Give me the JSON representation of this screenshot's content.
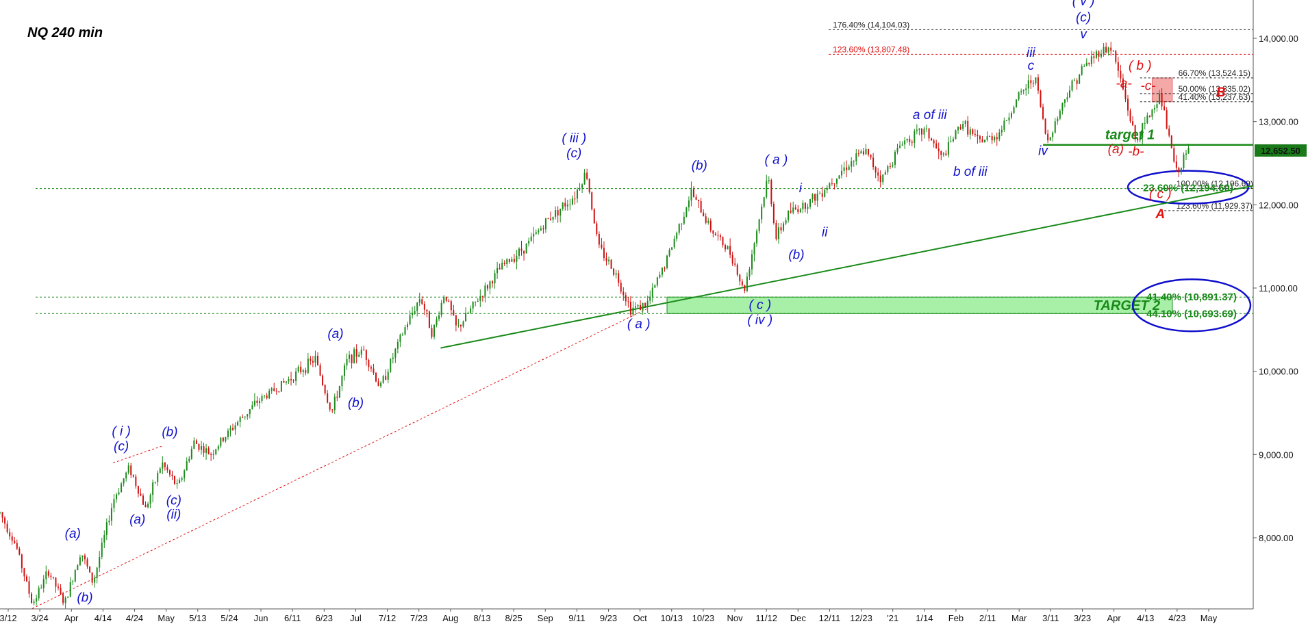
{
  "title": "NQ 240 min",
  "colors": {
    "up": "#1a8a1a",
    "down": "#d01010",
    "wave_blue": "#1010cc",
    "wave_red": "#e01010",
    "target_green": "#1a8a1a",
    "zone_fill": "#a8f0a8",
    "zone_red": "#f4a8a8",
    "grid_dotted": "#444444"
  },
  "current_price_label": "12,652.50",
  "chart_data": {
    "type": "candlestick",
    "title": "NQ 240 min",
    "ylim": [
      7100,
      14500
    ],
    "y_ticks": [
      "8,000.00",
      "9,000.00",
      "10,000.00",
      "11,000.00",
      "12,000.00",
      "13,000.00",
      "14,000.00"
    ],
    "y_tick_values": [
      8000,
      9000,
      10000,
      11000,
      12000,
      13000,
      14000
    ],
    "x_ticks": [
      "3/12",
      "3/24",
      "Apr",
      "4/14",
      "4/24",
      "May",
      "5/13",
      "5/24",
      "Jun",
      "6/11",
      "6/23",
      "Jul",
      "7/12",
      "7/23",
      "Aug",
      "8/13",
      "8/25",
      "Sep",
      "9/11",
      "9/23",
      "Oct",
      "10/13",
      "10/23",
      "Nov",
      "11/12",
      "Dec",
      "12/11",
      "12/23",
      "'21",
      "1/14",
      "Feb",
      "2/11",
      "Mar",
      "3/11",
      "3/23",
      "Apr",
      "4/13",
      "4/23",
      "May"
    ],
    "price_path_anchors": [
      [
        0,
        8300
      ],
      [
        4,
        7900
      ],
      [
        8,
        7200
      ],
      [
        12,
        7600
      ],
      [
        16,
        7200
      ],
      [
        20,
        7850
      ],
      [
        23,
        7450
      ],
      [
        28,
        8450
      ],
      [
        32,
        8850
      ],
      [
        36,
        8350
      ],
      [
        40,
        8900
      ],
      [
        44,
        8600
      ],
      [
        48,
        9150
      ],
      [
        52,
        9000
      ],
      [
        58,
        9350
      ],
      [
        64,
        9650
      ],
      [
        70,
        9850
      ],
      [
        78,
        10150
      ],
      [
        82,
        9500
      ],
      [
        86,
        10150
      ],
      [
        90,
        10250
      ],
      [
        94,
        9800
      ],
      [
        100,
        10500
      ],
      [
        104,
        10900
      ],
      [
        107,
        10450
      ],
      [
        110,
        10950
      ],
      [
        113,
        10500
      ],
      [
        118,
        10850
      ],
      [
        124,
        11250
      ],
      [
        130,
        11500
      ],
      [
        136,
        11850
      ],
      [
        142,
        12100
      ],
      [
        145,
        12400
      ],
      [
        148,
        11500
      ],
      [
        152,
        11200
      ],
      [
        156,
        10750
      ],
      [
        160,
        10800
      ],
      [
        165,
        11350
      ],
      [
        171,
        12150
      ],
      [
        176,
        11700
      ],
      [
        181,
        11400
      ],
      [
        184,
        10950
      ],
      [
        187,
        11650
      ],
      [
        190,
        12350
      ],
      [
        192,
        11600
      ],
      [
        195,
        11900
      ],
      [
        199,
        12000
      ],
      [
        203,
        12150
      ],
      [
        209,
        12450
      ],
      [
        214,
        12650
      ],
      [
        218,
        12300
      ],
      [
        223,
        12750
      ],
      [
        229,
        12900
      ],
      [
        233,
        12550
      ],
      [
        238,
        13000
      ],
      [
        242,
        12750
      ],
      [
        247,
        12850
      ],
      [
        252,
        13300
      ],
      [
        256,
        13550
      ],
      [
        259,
        12750
      ],
      [
        264,
        13350
      ],
      [
        268,
        13650
      ],
      [
        272,
        13850
      ],
      [
        275,
        13890
      ],
      [
        278,
        13350
      ],
      [
        281,
        12750
      ],
      [
        284,
        13050
      ],
      [
        287,
        13320
      ],
      [
        291,
        12380
      ],
      [
        294,
        12652.5
      ]
    ],
    "x_domain": [
      0,
      310
    ],
    "fib_levels": [
      {
        "label": "176.40% (14,104.03)",
        "value": 14104.03,
        "color": "#222222"
      },
      {
        "label": "123.60% (13,807.48)",
        "value": 13807.48,
        "color": "#e01010"
      },
      {
        "label": "66.70% (13,524.15)",
        "value": 13524.15,
        "color": "#222222"
      },
      {
        "label": "50.00% (13,335.02)",
        "value": 13335.02,
        "color": "#222222"
      },
      {
        "label": "41.40% (13,237.63)",
        "value": 13237.63,
        "color": "#222222"
      },
      {
        "label": "100.00% (12,196.69)",
        "value": 12196.69,
        "color": "#222222"
      },
      {
        "label": "123.60% (11,929.37)",
        "value": 11929.37,
        "color": "#222222"
      }
    ],
    "target_levels": [
      {
        "label": "23.60% (12,194.60)",
        "value": 12194.6
      },
      {
        "label": "41.40% (10,891.37)",
        "value": 10891.37
      },
      {
        "label": "44.10% (10,693.69)",
        "value": 10693.69
      }
    ],
    "target1": {
      "label": "target 1",
      "value": 12720
    },
    "target2": {
      "label": "TARGET 2",
      "low": 10693.69,
      "high": 10891.37
    },
    "red_zone": {
      "low": 13237.63,
      "high": 13524.15
    },
    "trendlines": [
      {
        "from": [
          109,
          10280
        ],
        "to": [
          310,
          12230
        ],
        "color": "#1a8a1a",
        "style": "solid"
      },
      {
        "from": [
          8,
          7150
        ],
        "to": [
          160,
          10750
        ],
        "color": "#e01010",
        "style": "dashed"
      },
      {
        "from": [
          28,
          8900
        ],
        "to": [
          40,
          9100
        ],
        "color": "#e01010",
        "style": "dashed"
      }
    ],
    "wave_labels": [
      {
        "text": "( v )",
        "x": 268,
        "y": 14400,
        "color": "blue"
      },
      {
        "text": "(c)",
        "x": 268,
        "y": 14200,
        "color": "blue"
      },
      {
        "text": "v",
        "x": 268,
        "y": 14000,
        "color": "blue"
      },
      {
        "text": "iii",
        "x": 255,
        "y": 13780,
        "color": "blue"
      },
      {
        "text": "c",
        "x": 255,
        "y": 13620,
        "color": "blue"
      },
      {
        "text": "a of iii",
        "x": 230,
        "y": 13030,
        "color": "blue"
      },
      {
        "text": "b of iii",
        "x": 240,
        "y": 12350,
        "color": "blue"
      },
      {
        "text": "iv",
        "x": 258,
        "y": 12600,
        "color": "blue"
      },
      {
        "text": "( iii )",
        "x": 142,
        "y": 12750,
        "color": "blue"
      },
      {
        "text": "(c)",
        "x": 142,
        "y": 12570,
        "color": "blue"
      },
      {
        "text": "(b)",
        "x": 173,
        "y": 12420,
        "color": "blue"
      },
      {
        "text": "( a )",
        "x": 192,
        "y": 12490,
        "color": "blue"
      },
      {
        "text": "i",
        "x": 198,
        "y": 12150,
        "color": "blue"
      },
      {
        "text": "ii",
        "x": 204,
        "y": 11620,
        "color": "blue"
      },
      {
        "text": "(b)",
        "x": 197,
        "y": 11350,
        "color": "blue"
      },
      {
        "text": "( c )",
        "x": 188,
        "y": 10750,
        "color": "blue"
      },
      {
        "text": "( iv )",
        "x": 188,
        "y": 10570,
        "color": "blue"
      },
      {
        "text": "( a )",
        "x": 158,
        "y": 10520,
        "color": "blue"
      },
      {
        "text": "(a)",
        "x": 83,
        "y": 10400,
        "color": "blue"
      },
      {
        "text": "(b)",
        "x": 88,
        "y": 9570,
        "color": "blue"
      },
      {
        "text": "( i )",
        "x": 30,
        "y": 9230,
        "color": "blue"
      },
      {
        "text": "(c)",
        "x": 30,
        "y": 9050,
        "color": "blue"
      },
      {
        "text": "(b)",
        "x": 42,
        "y": 9220,
        "color": "blue"
      },
      {
        "text": "(c)",
        "x": 43,
        "y": 8400,
        "color": "blue"
      },
      {
        "text": "(ii)",
        "x": 43,
        "y": 8230,
        "color": "blue"
      },
      {
        "text": "(a)",
        "x": 34,
        "y": 8170,
        "color": "blue"
      },
      {
        "text": "(a)",
        "x": 18,
        "y": 8000,
        "color": "blue"
      },
      {
        "text": "(b)",
        "x": 21,
        "y": 7230,
        "color": "blue"
      },
      {
        "text": "( b )",
        "x": 282,
        "y": 13620,
        "color": "red"
      },
      {
        "text": "-a-",
        "x": 278,
        "y": 13410,
        "color": "red"
      },
      {
        "text": "-c-",
        "x": 284,
        "y": 13380,
        "color": "red"
      },
      {
        "text": "B",
        "x": 302,
        "y": 13300,
        "color": "red"
      },
      {
        "text": "(a)",
        "x": 276,
        "y": 12620,
        "color": "red"
      },
      {
        "text": "-b-",
        "x": 281,
        "y": 12590,
        "color": "red"
      },
      {
        "text": "( c )",
        "x": 287,
        "y": 12080,
        "color": "red"
      },
      {
        "text": "A",
        "x": 287,
        "y": 11840,
        "color": "red"
      }
    ],
    "grid": false,
    "legend": "none"
  }
}
